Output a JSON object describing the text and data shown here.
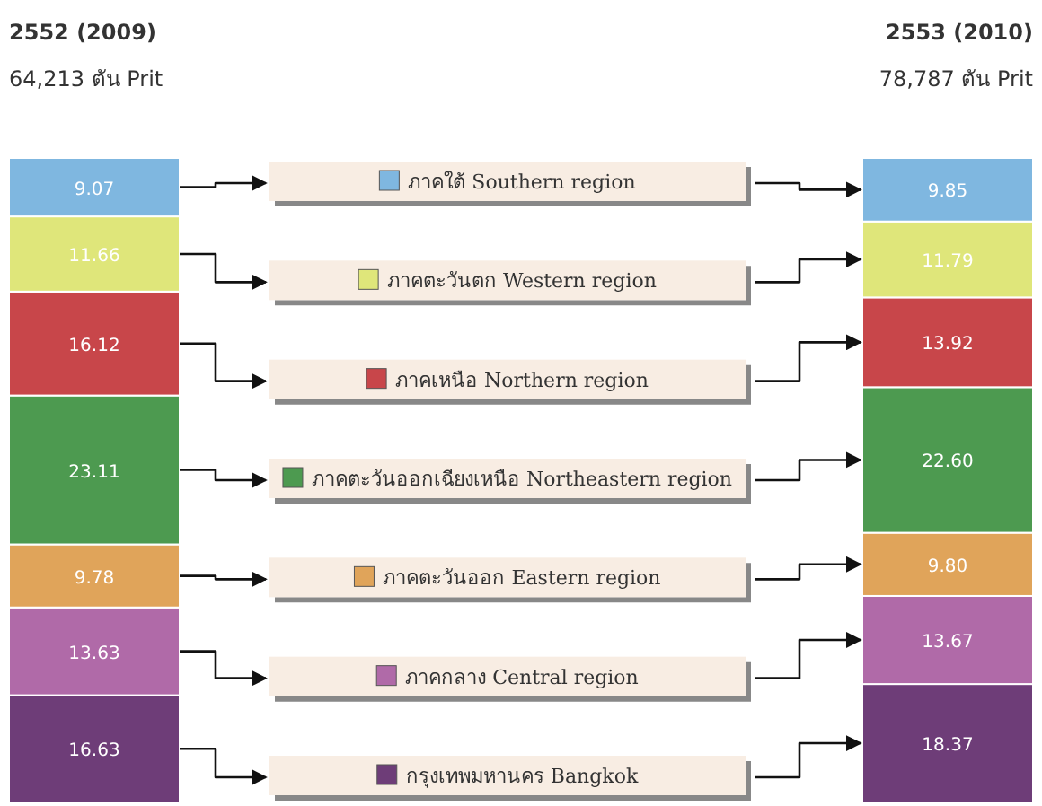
{
  "chart_data": {
    "type": "bar",
    "stacked": true,
    "legend": "center",
    "categories": [
      "2552 (2009)",
      "2553 (2010)"
    ],
    "annotations": [
      "64,213 ตัน Prit",
      "78,787 ตัน Prit"
    ],
    "series": [
      {
        "name": "กรุงเทพมหานคร Bangkok",
        "color": "#6e3d78",
        "values": [
          16.63,
          18.37
        ],
        "value_labels": [
          "16.63",
          "18.37"
        ]
      },
      {
        "name": "ภาคกลาง Central region",
        "color": "#b06aa8",
        "values": [
          13.63,
          13.67
        ],
        "value_labels": [
          "13.63",
          "13.67"
        ]
      },
      {
        "name": "ภาคตะวันออก Eastern region",
        "color": "#e0a45a",
        "values": [
          9.78,
          9.8
        ],
        "value_labels": [
          "9.78",
          "9.80"
        ]
      },
      {
        "name": "ภาคตะวันออกเฉียงเหนือ Northeastern region",
        "color": "#4d9a50",
        "values": [
          23.11,
          22.6
        ],
        "value_labels": [
          "23.11",
          "22.60"
        ]
      },
      {
        "name": "ภาคเหนือ Northern region",
        "color": "#c8464a",
        "values": [
          16.12,
          13.92
        ],
        "value_labels": [
          "16.12",
          "13.92"
        ]
      },
      {
        "name": "ภาคตะวันตก Western region",
        "color": "#dfe67a",
        "values": [
          11.66,
          11.79
        ],
        "value_labels": [
          "11.66",
          "11.79"
        ]
      },
      {
        "name": "ภาคใต้ Southern region",
        "color": "#7fb7e0",
        "values": [
          9.07,
          9.85
        ],
        "value_labels": [
          "9.07",
          "9.85"
        ]
      }
    ]
  }
}
